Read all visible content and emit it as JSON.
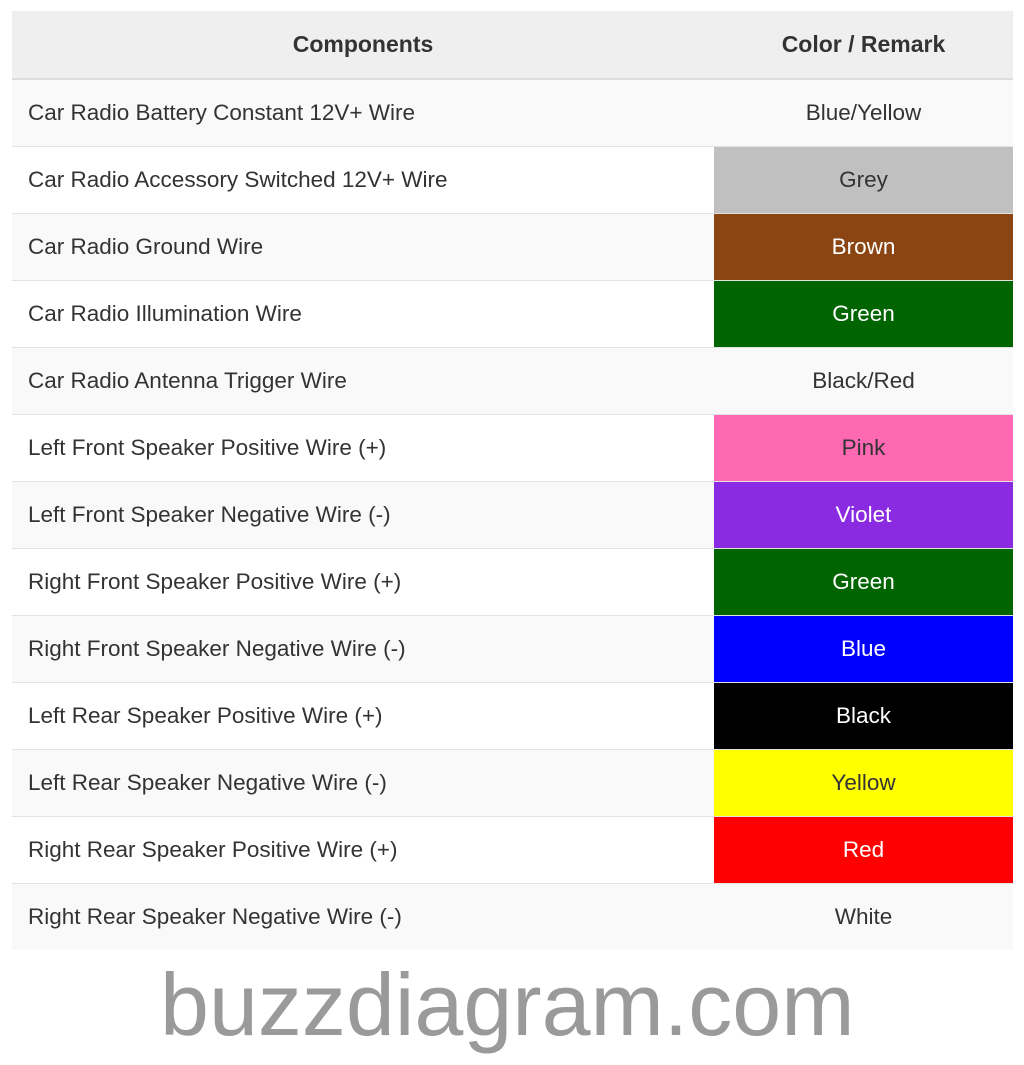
{
  "headers": {
    "components": "Components",
    "color": "Color / Remark"
  },
  "rows": [
    {
      "component": "Car Radio Battery Constant 12V+ Wire",
      "color": "Blue/Yellow",
      "bg": "",
      "fg": "#333333"
    },
    {
      "component": "Car Radio Accessory Switched 12V+ Wire",
      "color": "Grey",
      "bg": "#c0c0c0",
      "fg": "#333333"
    },
    {
      "component": "Car Radio Ground Wire",
      "color": "Brown",
      "bg": "#8b4513",
      "fg": "#ffffff"
    },
    {
      "component": "Car Radio Illumination Wire",
      "color": "Green",
      "bg": "#006400",
      "fg": "#ffffff"
    },
    {
      "component": "Car Radio Antenna Trigger Wire",
      "color": "Black/Red",
      "bg": "",
      "fg": "#333333"
    },
    {
      "component": "Left Front Speaker Positive Wire (+)",
      "color": "Pink",
      "bg": "#ff69b4",
      "fg": "#333333"
    },
    {
      "component": "Left Front Speaker Negative Wire (-)",
      "color": "Violet",
      "bg": "#8a2be2",
      "fg": "#ffffff"
    },
    {
      "component": "Right Front Speaker Positive Wire (+)",
      "color": "Green",
      "bg": "#006400",
      "fg": "#ffffff"
    },
    {
      "component": "Right Front Speaker Negative Wire (-)",
      "color": "Blue",
      "bg": "#0000ff",
      "fg": "#ffffff"
    },
    {
      "component": "Left Rear Speaker Positive Wire (+)",
      "color": "Black",
      "bg": "#000000",
      "fg": "#ffffff"
    },
    {
      "component": "Left Rear Speaker Negative Wire (-)",
      "color": "Yellow",
      "bg": "#ffff00",
      "fg": "#333333"
    },
    {
      "component": "Right Rear Speaker Positive Wire (+)",
      "color": "Red",
      "bg": "#ff0000",
      "fg": "#ffffff"
    },
    {
      "component": "Right Rear Speaker Negative Wire (-)",
      "color": "White",
      "bg": "",
      "fg": "#333333"
    }
  ],
  "watermark": "buzzdiagram.com"
}
